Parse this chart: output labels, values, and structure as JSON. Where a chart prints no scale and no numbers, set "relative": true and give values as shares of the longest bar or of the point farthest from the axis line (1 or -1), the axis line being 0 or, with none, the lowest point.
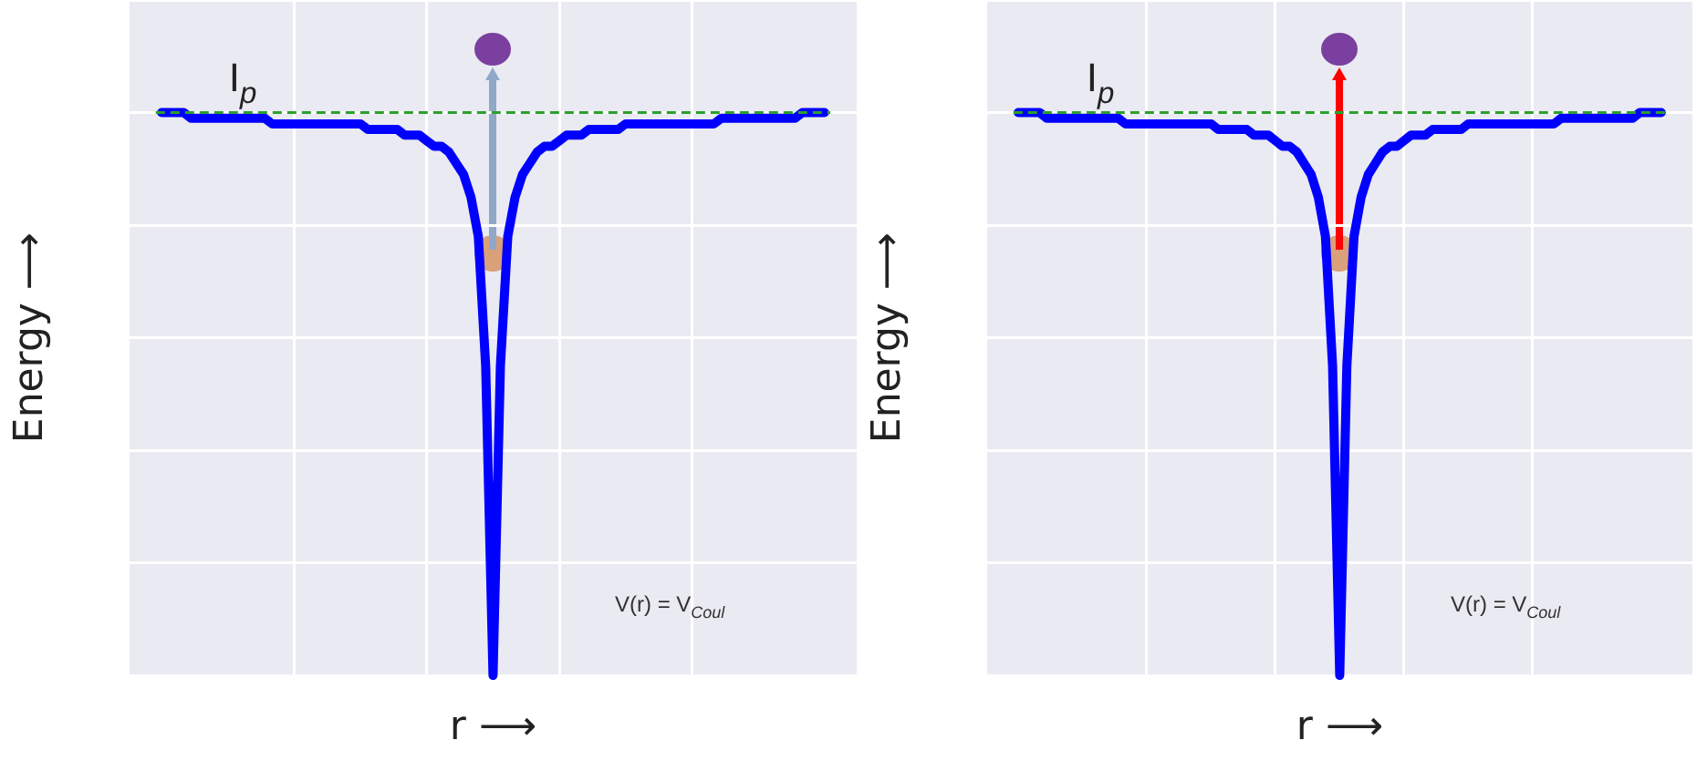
{
  "chart_data": [
    {
      "type": "line",
      "xlabel": "r ⟶",
      "ylabel": "Energy ⟶",
      "relative": true,
      "grid": true,
      "tick_labels": false,
      "marker": "none",
      "categories": [
        null,
        null,
        null,
        null,
        null,
        null,
        null,
        null,
        null,
        null,
        null,
        null,
        null,
        null,
        null,
        null,
        null,
        null,
        null,
        null,
        null,
        null,
        null,
        null,
        null,
        null,
        null,
        null,
        null,
        null,
        null,
        null,
        null,
        null,
        null,
        null,
        null,
        null,
        null,
        null,
        null,
        null,
        null,
        null,
        null,
        null,
        null,
        null,
        null,
        null,
        null,
        null,
        null,
        null,
        null,
        null,
        null,
        null,
        null,
        null,
        null,
        null,
        null,
        null,
        null,
        null,
        null,
        null,
        null,
        null,
        null,
        null,
        null,
        null,
        null,
        null,
        null,
        null,
        null,
        null,
        null,
        null,
        null,
        null,
        null,
        null,
        null,
        null,
        null,
        null,
        null
      ],
      "series": [
        {
          "color": "#0000ff",
          "values": [
            1,
            1,
            1,
            1,
            0.99,
            0.99,
            0.99,
            0.99,
            0.99,
            0.99,
            0.99,
            0.99,
            0.99,
            0.99,
            0.99,
            0.98,
            0.98,
            0.98,
            0.98,
            0.98,
            0.98,
            0.98,
            0.98,
            0.98,
            0.98,
            0.98,
            0.98,
            0.98,
            0.97,
            0.97,
            0.97,
            0.97,
            0.97,
            0.96,
            0.96,
            0.96,
            0.95,
            0.94,
            0.94,
            0.93,
            0.91,
            0.89,
            0.85,
            0.78,
            0.55,
            0,
            0.55,
            0.78,
            0.85,
            0.89,
            0.91,
            0.93,
            0.94,
            0.94,
            0.95,
            0.96,
            0.96,
            0.96,
            0.97,
            0.97,
            0.97,
            0.97,
            0.97,
            0.98,
            0.98,
            0.98,
            0.98,
            0.98,
            0.98,
            0.98,
            0.98,
            0.98,
            0.98,
            0.98,
            0.98,
            0.98,
            0.99,
            0.99,
            0.99,
            0.99,
            0.99,
            0.99,
            0.99,
            0.99,
            0.99,
            0.99,
            0.99,
            1,
            1,
            1,
            1
          ]
        }
      ],
      "ref_lines": [
        {
          "axis": "y",
          "value": 1,
          "label": "I$_{p}$",
          "color": "#2ca02c",
          "line_style": "dashed"
        }
      ],
      "annotations": [
        "V(r) = V$_{Coul}$"
      ]
    },
    {
      "type": "line",
      "xlabel": "r ⟶",
      "ylabel": "Energy ⟶",
      "relative": true,
      "grid": true,
      "tick_labels": false,
      "marker": "none",
      "categories": [
        null,
        null,
        null,
        null,
        null,
        null,
        null,
        null,
        null,
        null,
        null,
        null,
        null,
        null,
        null,
        null,
        null,
        null,
        null,
        null,
        null,
        null,
        null,
        null,
        null,
        null,
        null,
        null,
        null,
        null,
        null,
        null,
        null,
        null,
        null,
        null,
        null,
        null,
        null,
        null,
        null,
        null,
        null,
        null,
        null,
        null,
        null,
        null,
        null,
        null,
        null,
        null,
        null,
        null,
        null,
        null,
        null,
        null,
        null,
        null,
        null,
        null,
        null,
        null,
        null,
        null,
        null,
        null,
        null,
        null,
        null,
        null,
        null,
        null,
        null,
        null,
        null,
        null,
        null,
        null,
        null,
        null,
        null,
        null,
        null,
        null,
        null,
        null,
        null,
        null,
        null
      ],
      "series": [
        {
          "color": "#0000ff",
          "values": [
            1,
            1,
            1,
            1,
            0.99,
            0.99,
            0.99,
            0.99,
            0.99,
            0.99,
            0.99,
            0.99,
            0.99,
            0.99,
            0.99,
            0.98,
            0.98,
            0.98,
            0.98,
            0.98,
            0.98,
            0.98,
            0.98,
            0.98,
            0.98,
            0.98,
            0.98,
            0.98,
            0.97,
            0.97,
            0.97,
            0.97,
            0.97,
            0.96,
            0.96,
            0.96,
            0.95,
            0.94,
            0.94,
            0.93,
            0.91,
            0.89,
            0.85,
            0.78,
            0.55,
            0,
            0.55,
            0.78,
            0.85,
            0.89,
            0.91,
            0.93,
            0.94,
            0.94,
            0.95,
            0.96,
            0.96,
            0.96,
            0.97,
            0.97,
            0.97,
            0.97,
            0.97,
            0.98,
            0.98,
            0.98,
            0.98,
            0.98,
            0.98,
            0.98,
            0.98,
            0.98,
            0.98,
            0.98,
            0.98,
            0.98,
            0.99,
            0.99,
            0.99,
            0.99,
            0.99,
            0.99,
            0.99,
            0.99,
            0.99,
            0.99,
            0.99,
            1,
            1,
            1,
            1
          ]
        }
      ],
      "ref_lines": [
        {
          "axis": "y",
          "value": 1,
          "label": "I$_{p}$",
          "color": "#2ca02c",
          "line_style": "dashed"
        }
      ],
      "annotations": [
        "V(r) = V$_{Coul}$"
      ]
    }
  ]
}
